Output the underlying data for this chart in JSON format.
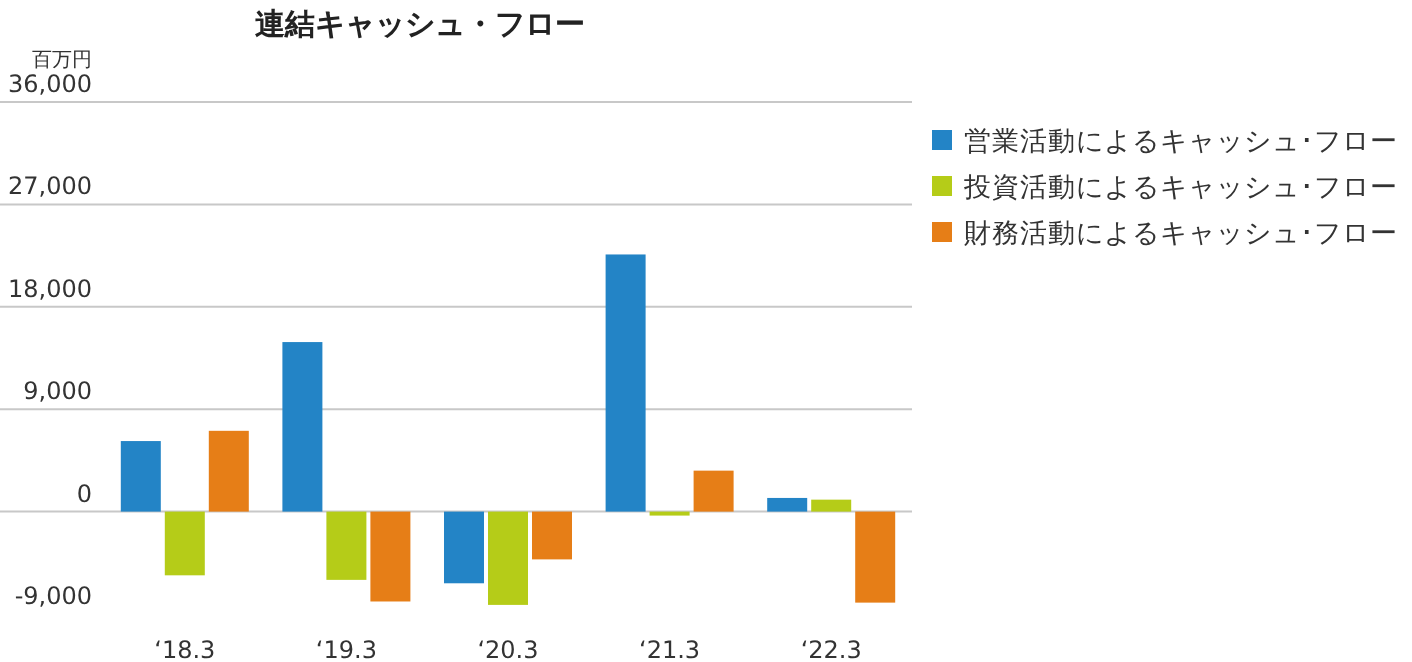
{
  "chart_data": {
    "type": "bar",
    "title": "連結キャッシュ・フロー",
    "ylabel": "百万円",
    "categories": [
      "‘18.3",
      "‘19.3",
      "‘20.3",
      "‘21.3",
      "‘22.3"
    ],
    "series": [
      {
        "name": "営業活動によるキャッシュ･フロー",
        "color": "#2384c6",
        "values": [
          6200,
          14900,
          -6300,
          22600,
          1200
        ]
      },
      {
        "name": "投資活動によるキャッシュ･フロー",
        "color": "#b5cc18",
        "values": [
          -5600,
          -6000,
          -8200,
          -350,
          1050
        ]
      },
      {
        "name": "財務活動によるキャッシュ･フロー",
        "color": "#e67e17",
        "values": [
          7100,
          -7900,
          -4200,
          3600,
          -8000
        ]
      }
    ],
    "ylim": [
      -9000,
      36000
    ],
    "yticks": [
      {
        "value": -9000,
        "label": "-9,000"
      },
      0,
      {
        "value": 9000,
        "label": "9,000"
      },
      {
        "value": 18000,
        "label": "18,000"
      },
      {
        "value": 27000,
        "label": "27,000"
      },
      {
        "value": 36000,
        "label": "36,000"
      }
    ],
    "grid": "y",
    "legend": "top right"
  }
}
